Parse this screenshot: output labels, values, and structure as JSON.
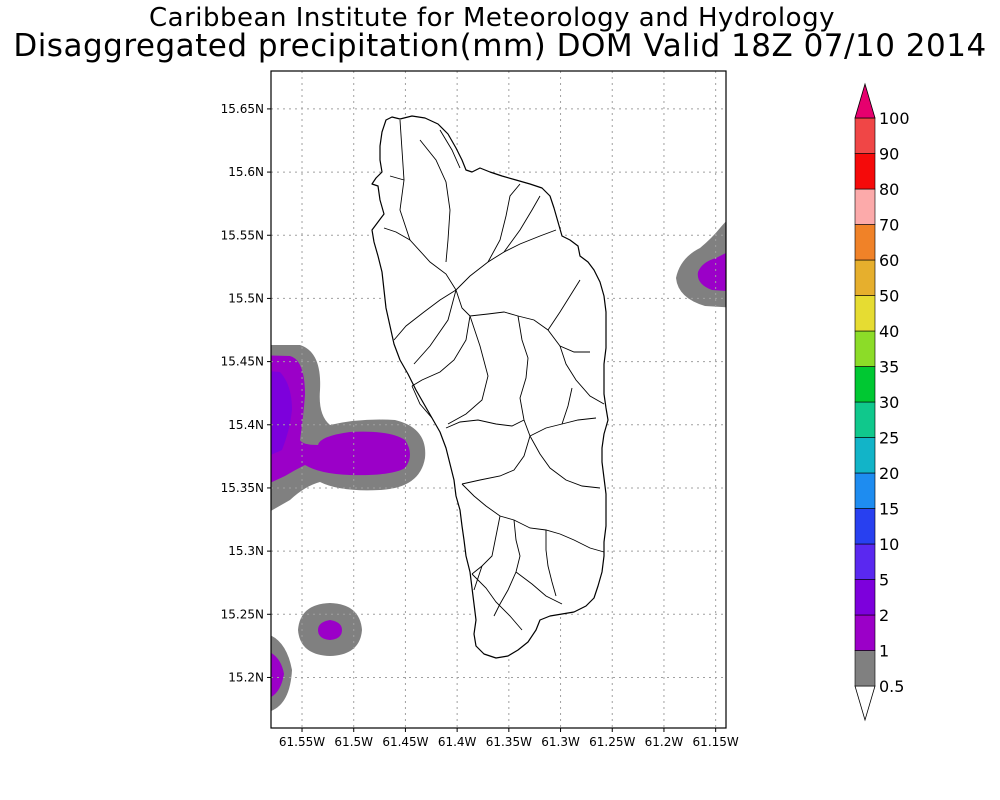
{
  "title": {
    "line1": "Caribbean Institute for Meteorology and Hydrology",
    "line2": "Disaggregated precipitation(mm) DOM Valid 18Z 07/10 2014"
  },
  "map": {
    "lon_range": [
      -61.58,
      -61.14
    ],
    "lat_range": [
      15.16,
      15.68
    ],
    "lat_ticks": [
      {
        "value": 15.65,
        "label": "15.65N"
      },
      {
        "value": 15.6,
        "label": "15.6N"
      },
      {
        "value": 15.55,
        "label": "15.55N"
      },
      {
        "value": 15.5,
        "label": "15.5N"
      },
      {
        "value": 15.45,
        "label": "15.45N"
      },
      {
        "value": 15.4,
        "label": "15.4N"
      },
      {
        "value": 15.35,
        "label": "15.35N"
      },
      {
        "value": 15.3,
        "label": "15.3N"
      },
      {
        "value": 15.25,
        "label": "15.25N"
      },
      {
        "value": 15.2,
        "label": "15.2N"
      }
    ],
    "lon_ticks": [
      {
        "value": -61.55,
        "label": "61.55W"
      },
      {
        "value": -61.5,
        "label": "61.5W"
      },
      {
        "value": -61.45,
        "label": "61.45W"
      },
      {
        "value": -61.4,
        "label": "61.4W"
      },
      {
        "value": -61.35,
        "label": "61.35W"
      },
      {
        "value": -61.3,
        "label": "61.3W"
      },
      {
        "value": -61.25,
        "label": "61.25W"
      },
      {
        "value": -61.2,
        "label": "61.2W"
      },
      {
        "value": -61.15,
        "label": "61.15W"
      }
    ],
    "gridlines": true
  },
  "colorbar": {
    "levels": [
      "0.5",
      "1",
      "2",
      "5",
      "10",
      "15",
      "20",
      "25",
      "30",
      "35",
      "40",
      "50",
      "60",
      "70",
      "80",
      "90",
      "100"
    ],
    "colors": [
      "#808080",
      "#9b00c8",
      "#7d00dc",
      "#5a28f0",
      "#2840f0",
      "#1e8cf0",
      "#12b4c8",
      "#10c88c",
      "#00c832",
      "#8cdc28",
      "#e6dc32",
      "#e6af2d",
      "#f08228",
      "#fcaaaa",
      "#f50a0a",
      "#f04646",
      "#e6006e"
    ],
    "below_color": "#ffffff",
    "above_color": "#e6006e"
  }
}
